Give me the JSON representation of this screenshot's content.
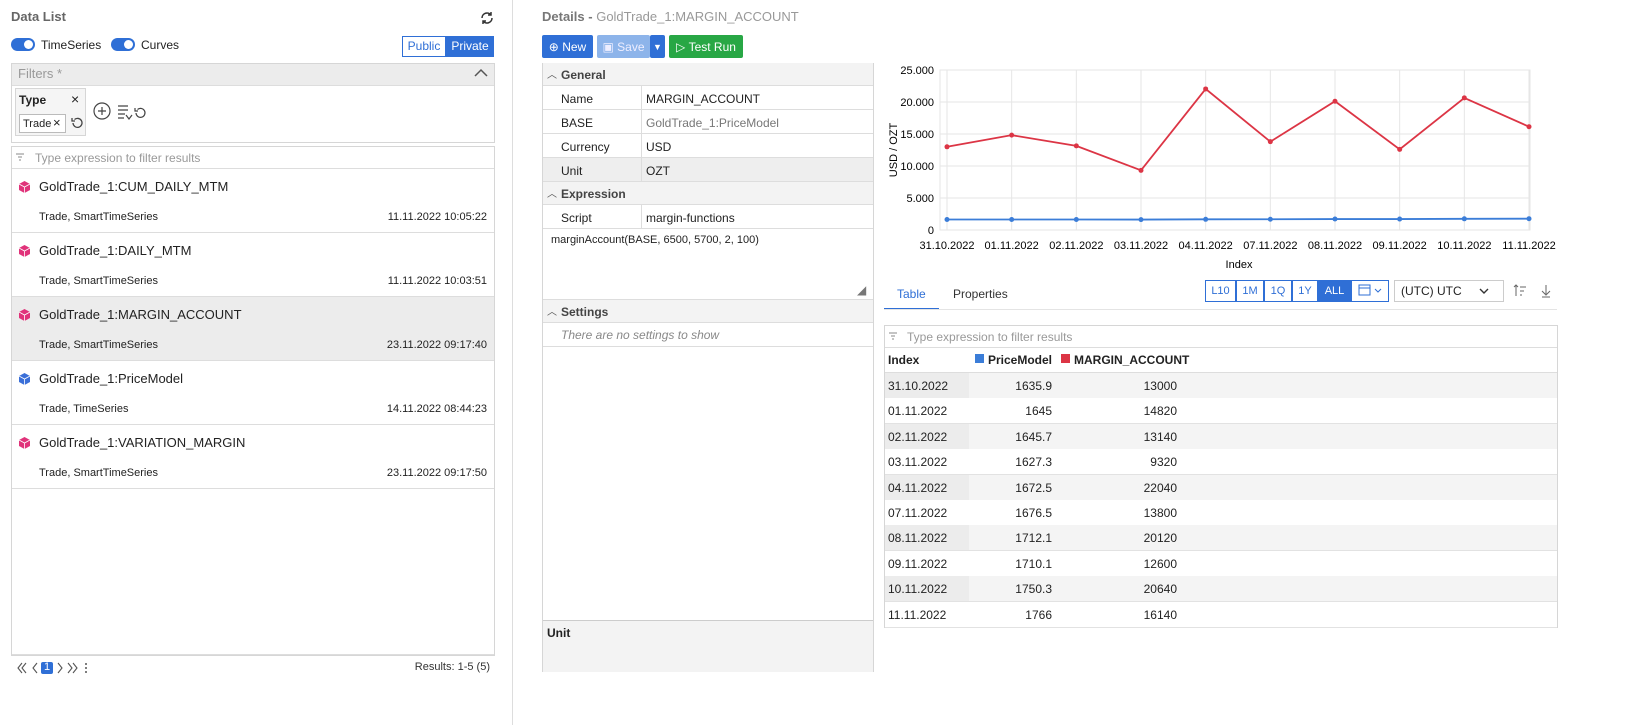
{
  "left_panel": {
    "title": "Data List",
    "toggles": [
      "TimeSeries",
      "Curves"
    ],
    "scope_buttons": [
      "Public",
      "Private"
    ],
    "filters_title": "Filters *",
    "filter_chip": {
      "label": "Type",
      "value": "Trade"
    },
    "search_placeholder": "Type expression to filter results",
    "items": [
      {
        "name": "GoldTrade_1:CUM_DAILY_MTM",
        "tags": "Trade, SmartTimeSeries",
        "timestamp": "11.11.2022 10:05:22",
        "icon_color": "#e0337a",
        "selected": false
      },
      {
        "name": "GoldTrade_1:DAILY_MTM",
        "tags": "Trade, SmartTimeSeries",
        "timestamp": "11.11.2022 10:03:51",
        "icon_color": "#e0337a",
        "selected": false
      },
      {
        "name": "GoldTrade_1:MARGIN_ACCOUNT",
        "tags": "Trade, SmartTimeSeries",
        "timestamp": "23.11.2022 09:17:40",
        "icon_color": "#e0337a",
        "selected": true
      },
      {
        "name": "GoldTrade_1:PriceModel",
        "tags": "Trade, TimeSeries",
        "timestamp": "14.11.2022 08:44:23",
        "icon_color": "#3a6fd8",
        "selected": false
      },
      {
        "name": "GoldTrade_1:VARIATION_MARGIN",
        "tags": "Trade, SmartTimeSeries",
        "timestamp": "23.11.2022 09:17:50",
        "icon_color": "#e0337a",
        "selected": false
      }
    ],
    "pager": {
      "page": "1",
      "results": "Results: 1-5 (5)"
    }
  },
  "details": {
    "title": "Details -",
    "subject": "GoldTrade_1:MARGIN_ACCOUNT",
    "buttons": {
      "new": "New",
      "save": "Save",
      "test_run": "Test Run"
    },
    "general": {
      "title": "General",
      "rows": [
        {
          "label": "Name",
          "value": "MARGIN_ACCOUNT"
        },
        {
          "label": "BASE",
          "value": "GoldTrade_1:PriceModel"
        },
        {
          "label": "Currency",
          "value": "USD"
        },
        {
          "label": "Unit",
          "value": "OZT"
        }
      ]
    },
    "expression": {
      "title": "Expression",
      "rows": [
        {
          "label": "Script",
          "value": "margin-functions"
        }
      ],
      "code": "marginAccount(BASE, 6500, 5700, 2, 100)"
    },
    "settings": {
      "title": "Settings",
      "empty": "There are no settings to show"
    },
    "unit_panel": {
      "title": "Unit"
    }
  },
  "chart_data": {
    "type": "line",
    "x_label": "Index",
    "y_label": "USD / OZT",
    "categories": [
      "31.10.2022",
      "01.11.2022",
      "02.11.2022",
      "03.11.2022",
      "04.11.2022",
      "07.11.2022",
      "08.11.2022",
      "09.11.2022",
      "10.11.2022",
      "11.11.2022"
    ],
    "series": [
      {
        "name": "PriceModel",
        "color": "#3b7dd8",
        "values": [
          1635.9,
          1645,
          1645.7,
          1627.3,
          1672.5,
          1676.5,
          1712.1,
          1710.1,
          1750.3,
          1766
        ]
      },
      {
        "name": "MARGIN_ACCOUNT",
        "color": "#dc3545",
        "values": [
          13000,
          14820,
          13140,
          9320,
          22040,
          13800,
          20120,
          12600,
          20640,
          16140
        ]
      }
    ],
    "ylim": [
      0,
      25000
    ],
    "yticks": [
      0,
      {
        "value": 5000,
        "label": "5.000"
      },
      {
        "value": 10000,
        "label": "10.000"
      },
      {
        "value": 15000,
        "label": "15.000"
      },
      {
        "value": 20000,
        "label": "20.000"
      },
      {
        "value": 25000,
        "label": "25.000"
      }
    ],
    "grid": true
  },
  "view": {
    "tabs": [
      "Table",
      "Properties"
    ],
    "active_tab": "Table",
    "ranges": [
      "L10",
      "1M",
      "1Q",
      "1Y",
      "ALL"
    ],
    "active_range": "ALL",
    "timezone": "(UTC) UTC",
    "filter_placeholder": "Type expression to filter results",
    "index_header": "Index"
  }
}
